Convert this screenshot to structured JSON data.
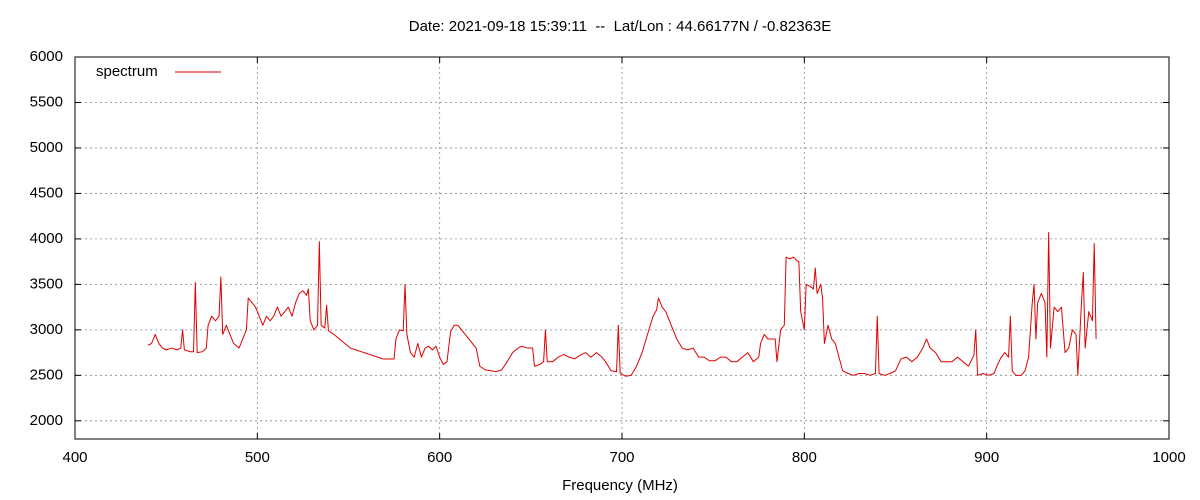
{
  "chart_data": {
    "type": "line",
    "title": "Date: 2021-09-18 15:39:11  --  Lat/Lon : 44.66177N / -0.82363E",
    "xlabel": "Frequency (MHz)",
    "xlim": [
      400,
      1000
    ],
    "xticks": [
      400,
      500,
      600,
      700,
      800,
      900,
      1000
    ],
    "ylim": [
      1800,
      6000
    ],
    "yticks": [
      2000,
      2500,
      3000,
      3500,
      4000,
      4500,
      5000,
      5500,
      6000
    ],
    "grid": true,
    "legend": "top-left",
    "x": [
      440,
      442,
      444,
      446,
      448,
      450,
      453,
      456,
      458,
      459,
      460,
      463,
      465,
      466,
      467,
      470,
      472,
      473,
      475,
      477,
      479,
      480,
      481,
      483,
      485,
      487,
      490,
      492,
      494,
      495,
      497,
      499,
      501,
      503,
      505,
      507,
      509,
      511,
      513,
      515,
      517,
      519,
      521,
      523,
      525,
      527,
      528,
      529,
      531,
      533,
      534,
      535,
      537,
      538,
      539,
      542,
      545,
      548,
      551,
      554,
      557,
      560,
      563,
      566,
      569,
      572,
      575,
      576,
      578,
      580,
      581,
      582,
      584,
      586,
      588,
      590,
      592,
      594,
      596,
      598,
      600,
      602,
      604,
      606,
      608,
      610,
      612,
      614,
      616,
      618,
      620,
      622,
      625,
      628,
      631,
      634,
      637,
      640,
      643,
      645,
      648,
      651,
      652,
      655,
      657,
      658,
      659,
      662,
      665,
      668,
      671,
      674,
      677,
      680,
      683,
      686,
      689,
      691,
      694,
      697,
      698,
      699,
      702,
      705,
      708,
      711,
      714,
      717,
      719,
      720,
      722,
      724,
      727,
      730,
      733,
      736,
      739,
      742,
      745,
      748,
      751,
      754,
      757,
      760,
      763,
      766,
      769,
      772,
      775,
      776,
      778,
      780,
      782,
      784,
      785,
      787,
      789,
      790,
      792,
      794,
      796,
      797,
      798,
      800,
      801,
      803,
      805,
      806,
      807,
      809,
      810,
      811,
      813,
      815,
      817,
      819,
      821,
      824,
      827,
      830,
      833,
      836,
      839,
      840,
      841,
      844,
      847,
      850,
      853,
      856,
      859,
      862,
      865,
      867,
      869,
      872,
      875,
      878,
      881,
      884,
      887,
      890,
      893,
      894,
      895,
      898,
      901,
      904,
      906,
      908,
      910,
      912,
      913,
      914,
      916,
      919,
      921,
      923,
      924,
      925,
      926,
      927,
      928,
      930,
      932,
      933,
      934,
      935,
      937,
      939,
      941,
      943,
      945,
      947,
      949,
      950,
      952,
      953,
      954,
      956,
      958,
      959,
      960
    ],
    "series": [
      {
        "name": "spectrum",
        "color": "#e00000",
        "values": [
          2830,
          2850,
          2950,
          2850,
          2800,
          2780,
          2800,
          2780,
          2800,
          3000,
          2780,
          2760,
          2760,
          3520,
          2750,
          2760,
          2800,
          3050,
          3150,
          3100,
          3150,
          3580,
          2950,
          3050,
          2950,
          2850,
          2800,
          2900,
          3000,
          3350,
          3300,
          3250,
          3150,
          3050,
          3150,
          3100,
          3150,
          3250,
          3150,
          3200,
          3250,
          3150,
          3300,
          3400,
          3430,
          3380,
          3450,
          3100,
          3000,
          3050,
          3970,
          3050,
          3020,
          3270,
          2990,
          2950,
          2900,
          2850,
          2800,
          2780,
          2760,
          2740,
          2720,
          2700,
          2680,
          2680,
          2680,
          2900,
          3000,
          2990,
          3500,
          2950,
          2750,
          2700,
          2850,
          2700,
          2800,
          2820,
          2780,
          2820,
          2700,
          2620,
          2650,
          2980,
          3050,
          3050,
          3000,
          2950,
          2900,
          2850,
          2800,
          2600,
          2560,
          2550,
          2540,
          2560,
          2650,
          2750,
          2800,
          2820,
          2800,
          2800,
          2600,
          2620,
          2650,
          3000,
          2650,
          2650,
          2700,
          2730,
          2700,
          2680,
          2720,
          2750,
          2700,
          2750,
          2700,
          2650,
          2550,
          2540,
          3050,
          2520,
          2490,
          2500,
          2600,
          2750,
          2950,
          3150,
          3220,
          3350,
          3250,
          3200,
          3050,
          2900,
          2800,
          2780,
          2800,
          2700,
          2700,
          2660,
          2660,
          2700,
          2700,
          2650,
          2650,
          2700,
          2750,
          2650,
          2700,
          2850,
          2950,
          2900,
          2900,
          2900,
          2650,
          3000,
          3050,
          3800,
          3780,
          3800,
          3760,
          3750,
          3200,
          3000,
          3500,
          3480,
          3450,
          3680,
          3400,
          3500,
          3350,
          2850,
          3050,
          2900,
          2850,
          2700,
          2550,
          2520,
          2500,
          2520,
          2520,
          2500,
          2520,
          3150,
          2520,
          2500,
          2520,
          2550,
          2680,
          2700,
          2650,
          2700,
          2800,
          2900,
          2800,
          2750,
          2650,
          2650,
          2650,
          2700,
          2650,
          2600,
          2720,
          3000,
          2500,
          2520,
          2500,
          2520,
          2620,
          2700,
          2750,
          2700,
          3150,
          2550,
          2500,
          2500,
          2550,
          2700,
          3000,
          3300,
          3500,
          2900,
          3300,
          3400,
          3300,
          2700,
          4070,
          2800,
          3250,
          3200,
          3250,
          2750,
          2800,
          3000,
          2950,
          2500,
          3300,
          3630,
          2800,
          3200,
          3100,
          3950,
          2900
        ]
      }
    ]
  }
}
